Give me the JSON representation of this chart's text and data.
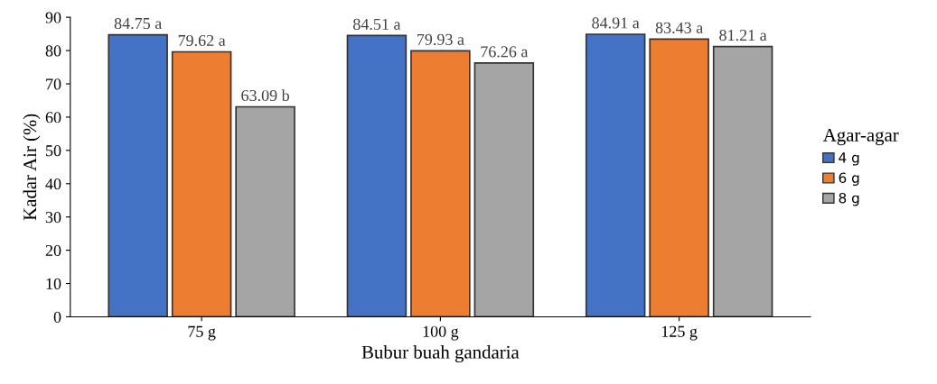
{
  "chart_data": {
    "type": "bar",
    "xlabel": "Bubur buah gandaria",
    "ylabel": "Kadar Air (%)",
    "legend_title": "Agar-agar",
    "categories": [
      "75 g",
      "100 g",
      "125 g"
    ],
    "series": [
      {
        "name": "4 g",
        "color": "#4472c4",
        "values": [
          84.75,
          84.51,
          84.91
        ],
        "value_labels": [
          "84.75 a",
          "84.51 a",
          "84.91 a"
        ]
      },
      {
        "name": "6 g",
        "color": "#ed7d31",
        "values": [
          79.62,
          79.93,
          83.43
        ],
        "value_labels": [
          "79.62 a",
          "79.93 a",
          "83.43 a"
        ]
      },
      {
        "name": "8 g",
        "color": "#a5a5a5",
        "values": [
          63.09,
          76.26,
          81.21
        ],
        "value_labels": [
          "63.09 b",
          "76.26 a",
          "81.21 a"
        ]
      }
    ],
    "ylim": [
      0,
      90
    ],
    "yticks": [
      0,
      10,
      20,
      30,
      40,
      50,
      60,
      70,
      80,
      90
    ],
    "grid": false,
    "legend": "right"
  }
}
